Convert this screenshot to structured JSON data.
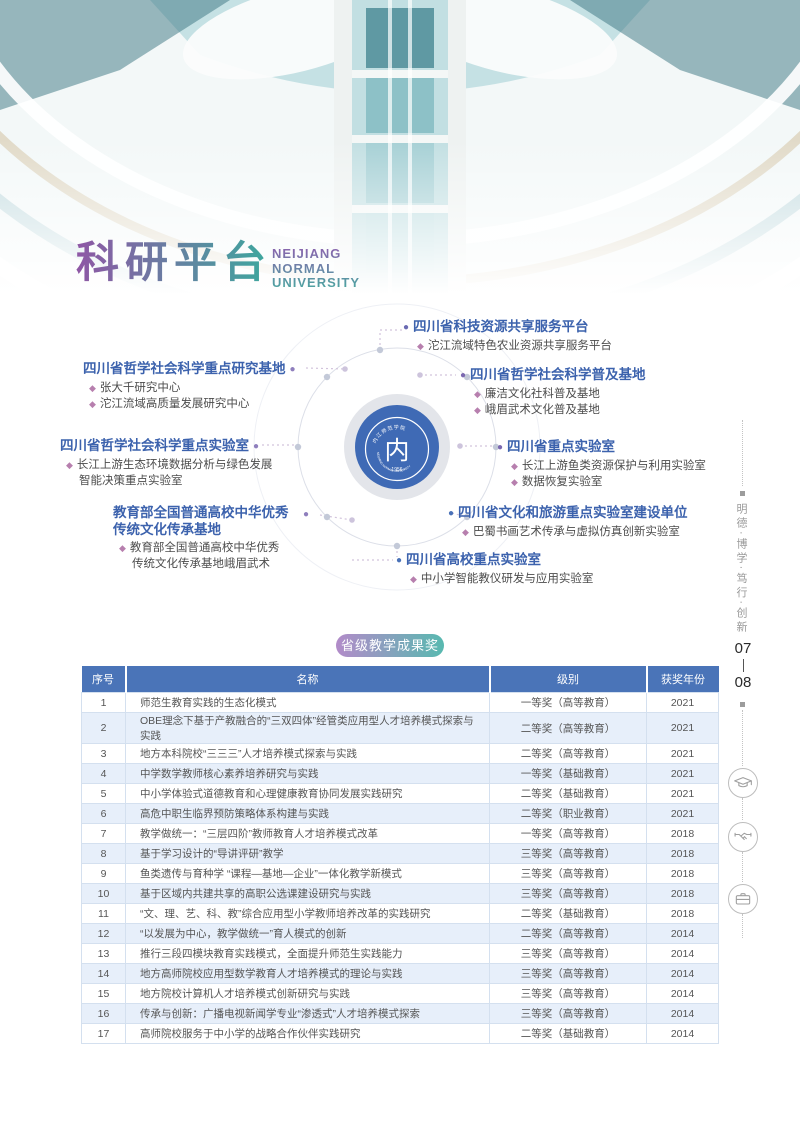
{
  "header": {
    "title": "科研平台",
    "subtitle_lines": [
      "NEIJIANG",
      "NORMAL",
      "UNIVERSITY"
    ]
  },
  "diagram": {
    "center_logo": {
      "name_zh": "内江师范学院",
      "name_en": "NEIJIANG NORMAL UNIVERSITY",
      "year_label": "· 1956 ·",
      "glyph": "内",
      "circle_color": "#3f6ab5"
    },
    "left_platforms": [
      {
        "title": "四川省哲学社会科学重点研究基地",
        "bullet_color": "#8f7fbd",
        "items": [
          "张大千研究中心",
          "沱江流域高质量发展研究中心"
        ]
      },
      {
        "title": "四川省哲学社会科学重点实验室",
        "bullet_color": "#8f7fbd",
        "items": [
          "长江上游生态环境数据分析与绿色发展智能决策重点实验室"
        ]
      },
      {
        "title": "教育部全国普通高校中华优秀传统文化传承基地",
        "bullet_color": "#8f7fbd",
        "items": [
          "教育部全国普通高校中华优秀传统文化传承基地峨眉武术"
        ]
      }
    ],
    "right_platforms": [
      {
        "title": "四川省科技资源共享服务平台",
        "bullet_color": "#6b6bb3",
        "items": [
          "沱江流域特色农业资源共享服务平台"
        ]
      },
      {
        "title": "四川省哲学社会科学普及基地",
        "bullet_color": "#7b68b0",
        "items": [
          "廉洁文化社科普及基地",
          "峨眉武术文化普及基地"
        ]
      },
      {
        "title": "四川省重点实验室",
        "bullet_color": "#7b68b0",
        "items": [
          "长江上游鱼类资源保护与利用实验室",
          "数据恢复实验室"
        ]
      },
      {
        "title": "四川省文化和旅游重点实验室建设单位",
        "bullet_color": "#4a72b8",
        "items": [
          "巴蜀书画艺术传承与虚拟仿真创新实验室"
        ]
      },
      {
        "title": "四川省高校重点实验室",
        "bullet_color": "#4a72b8",
        "items": [
          "中小学智能教仪研发与应用实验室"
        ]
      }
    ]
  },
  "sidebar": {
    "motto": "明德·博学·笃行·创新",
    "page_number_top": "07",
    "page_number_bottom": "08",
    "icons": [
      "graduation-cap-icon",
      "handshake-icon",
      "briefcase-icon"
    ]
  },
  "table": {
    "label": "省级教学成果奖",
    "columns": [
      "序号",
      "名称",
      "级别",
      "获奖年份"
    ],
    "rows": [
      [
        "1",
        "师范生教育实践的生态化模式",
        "一等奖（高等教育）",
        "2021"
      ],
      [
        "2",
        "OBE理念下基于产教融合的“三双四体”经管类应用型人才培养模式探索与实践",
        "二等奖（高等教育）",
        "2021"
      ],
      [
        "3",
        "地方本科院校“三三三”人才培养模式探索与实践",
        "二等奖（高等教育）",
        "2021"
      ],
      [
        "4",
        "中学数学教师核心素养培养研究与实践",
        "一等奖（基础教育）",
        "2021"
      ],
      [
        "5",
        "中小学体验式道德教育和心理健康教育协同发展实践研究",
        "二等奖（基础教育）",
        "2021"
      ],
      [
        "6",
        "高危中职生临界预防策略体系构建与实践",
        "二等奖（职业教育）",
        "2021"
      ],
      [
        "7",
        "教学做统一：“三层四阶”教师教育人才培养模式改革",
        "一等奖（高等教育）",
        "2018"
      ],
      [
        "8",
        "基于学习设计的“导讲评研”教学",
        "三等奖（高等教育）",
        "2018"
      ],
      [
        "9",
        "鱼类遗传与育种学 “课程—基地—企业”一体化教学新模式",
        "三等奖（高等教育）",
        "2018"
      ],
      [
        "10",
        "基于区域内共建共享的高职公选课建设研究与实践",
        "三等奖（高等教育）",
        "2018"
      ],
      [
        "11",
        "“文、理、艺、科、教”综合应用型小学教师培养改革的实践研究",
        "二等奖（基础教育）",
        "2018"
      ],
      [
        "12",
        "“以发展为中心，教学做统一”育人模式的创新",
        "二等奖（高等教育）",
        "2014"
      ],
      [
        "13",
        "推行三段四模块教育实践模式，全面提升师范生实践能力",
        "三等奖（高等教育）",
        "2014"
      ],
      [
        "14",
        "地方高师院校应用型数学教育人才培养模式的理论与实践",
        "三等奖（高等教育）",
        "2014"
      ],
      [
        "15",
        "地方院校计算机人才培养模式创新研究与实践",
        "三等奖（高等教育）",
        "2014"
      ],
      [
        "16",
        "传承与创新：广播电视新闻学专业“渗透式”人才培养模式探索",
        "三等奖（高等教育）",
        "2014"
      ],
      [
        "17",
        "高师院校服务于中小学的战略合作伙伴实践研究",
        "二等奖（基础教育）",
        "2014"
      ]
    ]
  },
  "colors": {
    "accent_blue": "#3c62ad",
    "table_header_bg": "#4a74b8",
    "row_alt_bg": "#e7effa",
    "pill_gradient_left": "#b28bc9",
    "pill_gradient_right": "#58b9b0",
    "title_gradient_left": "#8f57a5",
    "title_gradient_right": "#3ca99e",
    "diamond": "#b77fae",
    "center_circle": "#3f6ab5"
  }
}
